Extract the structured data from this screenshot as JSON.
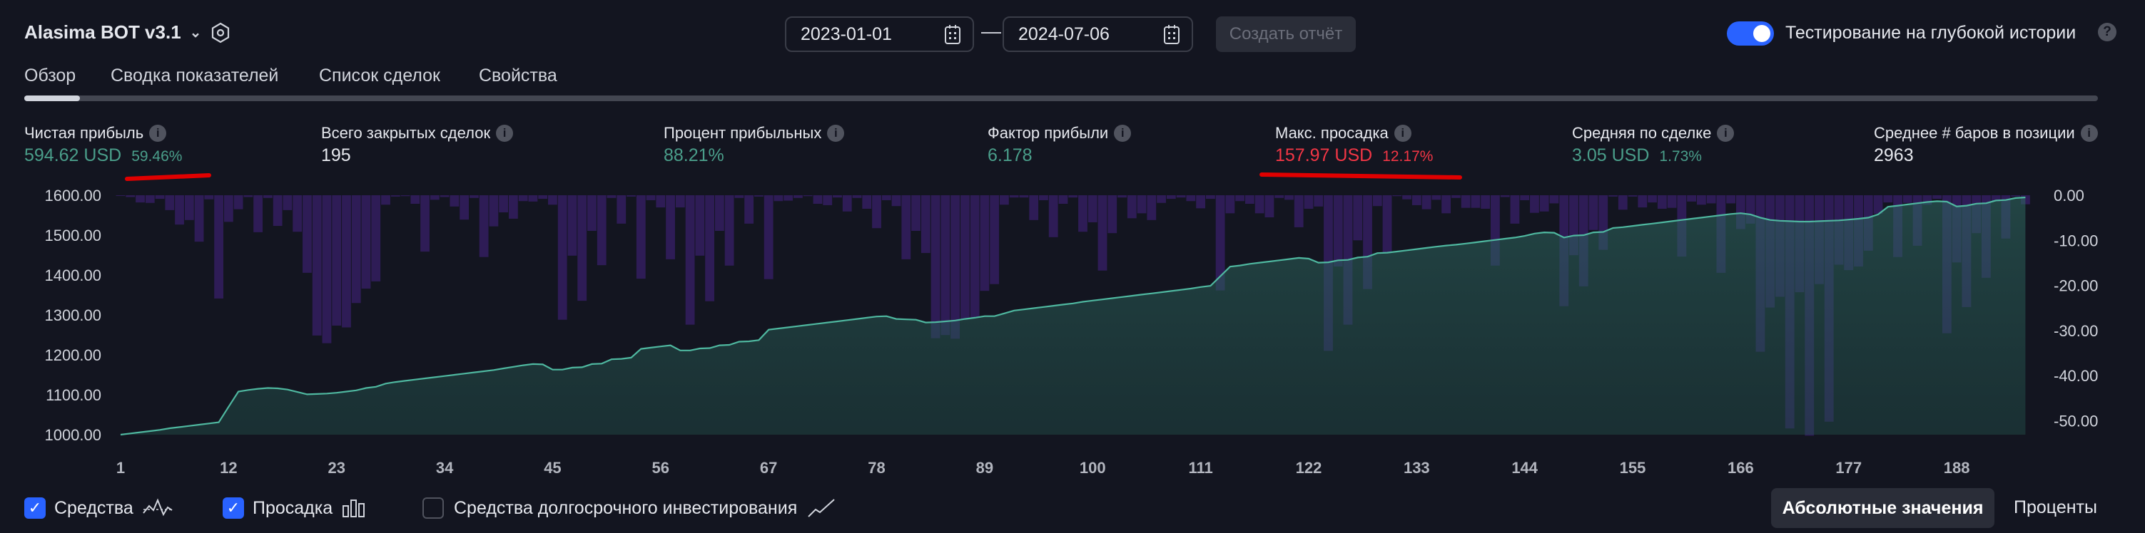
{
  "header": {
    "strategy_name": "Alasima BOT v3.1",
    "date_from": "2023-01-01",
    "date_to": "2024-07-06",
    "date_separator": "—",
    "create_report_label": "Создать отчёт",
    "deep_history_label": "Тестирование на глубокой истории",
    "deep_history_enabled": true,
    "help_icon": "?"
  },
  "tabs": [
    {
      "label": "Обзор",
      "active": true
    },
    {
      "label": "Сводка показателей"
    },
    {
      "label": "Список сделок"
    },
    {
      "label": "Свойства"
    }
  ],
  "stats": [
    {
      "label": "Чистая прибыль",
      "value": "594.62 USD",
      "sub": "59.46%",
      "color": "green"
    },
    {
      "label": "Всего закрытых сделок",
      "value": "195",
      "sub": "",
      "color": "white"
    },
    {
      "label": "Процент прибыльных",
      "value": "88.21%",
      "sub": "",
      "color": "green"
    },
    {
      "label": "Фактор прибыли",
      "value": "6.178",
      "sub": "",
      "color": "green"
    },
    {
      "label": "Макс. просадка",
      "value": "157.97 USD",
      "sub": "12.17%",
      "color": "red"
    },
    {
      "label": "Средняя по сделке",
      "value": "3.05 USD",
      "sub": "1.73%",
      "color": "green"
    },
    {
      "label": "Среднее # баров в позиции",
      "value": "2963",
      "sub": "",
      "color": "white"
    }
  ],
  "colors": {
    "accent": "#2962ff",
    "profit": "#4a9e8a",
    "loss": "#f23645",
    "equity_line": "#4fb8a0",
    "drawdown_bar": "#2e1c56",
    "annotation": "#e00000"
  },
  "chart_data": {
    "type": "bar+area",
    "left_axis": {
      "ylim": [
        1000,
        1600
      ],
      "ticks": [
        "1600.00",
        "1500.00",
        "1400.00",
        "1300.00",
        "1200.00",
        "1100.00",
        "1000.00"
      ]
    },
    "right_axis": {
      "ylim": [
        -55,
        0
      ],
      "ticks": [
        "0.00",
        "-10.00",
        "-20.00",
        "-30.00",
        "-40.00",
        "-50.00"
      ]
    },
    "x_ticks": [
      "1",
      "12",
      "23",
      "34",
      "45",
      "56",
      "67",
      "78",
      "89",
      "100",
      "111",
      "122",
      "133",
      "144",
      "155",
      "166",
      "177",
      "188"
    ],
    "trade_count": 195,
    "equity": [
      1000,
      1003,
      1006,
      1009,
      1012,
      1016,
      1019,
      1022,
      1025,
      1028,
      1031,
      1070,
      1108,
      1112,
      1115,
      1117,
      1116,
      1113,
      1107,
      1101,
      1102,
      1103,
      1105,
      1108,
      1111,
      1117,
      1120,
      1128,
      1132,
      1135,
      1138,
      1141,
      1144,
      1147,
      1150,
      1153,
      1156,
      1159,
      1162,
      1166,
      1170,
      1174,
      1177,
      1176,
      1163,
      1163,
      1168,
      1169,
      1177,
      1178,
      1189,
      1190,
      1193,
      1215,
      1218,
      1221,
      1224,
      1211,
      1211,
      1216,
      1217,
      1224,
      1225,
      1233,
      1234,
      1237,
      1263,
      1266,
      1269,
      1272,
      1275,
      1278,
      1281,
      1284,
      1287,
      1290,
      1293,
      1296,
      1297,
      1290,
      1289,
      1288,
      1281,
      1282,
      1284,
      1286,
      1290,
      1293,
      1297,
      1297,
      1304,
      1311,
      1314,
      1317,
      1320,
      1323,
      1326,
      1329,
      1333,
      1336,
      1339,
      1342,
      1345,
      1348,
      1351,
      1354,
      1357,
      1360,
      1363,
      1366,
      1370,
      1373,
      1397,
      1421,
      1424,
      1428,
      1431,
      1434,
      1437,
      1440,
      1443,
      1441,
      1431,
      1432,
      1437,
      1438,
      1444,
      1446,
      1455,
      1456,
      1459,
      1462,
      1465,
      1468,
      1471,
      1474,
      1476,
      1479,
      1482,
      1485,
      1488,
      1491,
      1494,
      1498,
      1504,
      1507,
      1506,
      1494,
      1499,
      1500,
      1507,
      1508,
      1518,
      1520,
      1523,
      1526,
      1529,
      1532,
      1535,
      1538,
      1541,
      1544,
      1547,
      1550,
      1553,
      1555,
      1552,
      1544,
      1538,
      1536,
      1535,
      1534,
      1534,
      1535,
      1536,
      1537,
      1539,
      1541,
      1544,
      1552,
      1571,
      1574,
      1577,
      1580,
      1583,
      1585,
      1584,
      1572,
      1574,
      1579,
      1580,
      1587,
      1588,
      1593,
      1594.62
    ],
    "drawdown": [
      -0.1,
      -0.4,
      -1.6,
      -1.7,
      -0.8,
      -3.3,
      -6.5,
      -5.5,
      -10.3,
      -0.9,
      -22.9,
      -5.9,
      -3.1,
      -0.4,
      -8.2,
      -0.6,
      -6.8,
      -3.3,
      -8.1,
      -17.2,
      -31.1,
      -32.8,
      -28.9,
      -29.3,
      -23.9,
      -20.7,
      -19.1,
      -2.1,
      -0.3,
      -0.2,
      -1.9,
      -12.5,
      -1.0,
      -0.4,
      -2.5,
      -5.4,
      -0.6,
      -13.7,
      -6.9,
      -3.8,
      -5.2,
      -1.3,
      -1.4,
      -0.8,
      -2.1,
      -27.6,
      -13.4,
      -23.4,
      -7.9,
      -15.5,
      -0.6,
      -6.3,
      -0.3,
      -18.5,
      -1.1,
      -2.7,
      -14.2,
      -2.7,
      -28.7,
      -13.4,
      -23.5,
      -7.9,
      -15.6,
      -0.6,
      -6.3,
      -0.3,
      -18.6,
      -1.3,
      -1.2,
      -0.6,
      -0.2,
      -1.9,
      -2.2,
      -0.5,
      -3.6,
      -0.6,
      -3.0,
      -7.3,
      -1.1,
      -2.4,
      -14.2,
      -7.9,
      -12.8,
      -31.7,
      -31.0,
      -31.8,
      -27.5,
      -27.2,
      -21.2,
      -19.7,
      -2.1,
      -0.5,
      -0.5,
      -5.5,
      -1.1,
      -9.3,
      -1.9,
      -0.5,
      -8.1,
      -6.0,
      -16.7,
      -8.4,
      -0.5,
      -5.1,
      -4.0,
      -5.5,
      -1.7,
      -0.8,
      -0.5,
      -1.3,
      -2.9,
      -0.8,
      -21.1,
      -4.0,
      -1.3,
      -1.9,
      -4.0,
      -4.9,
      -0.6,
      -1.0,
      -7.1,
      -3.0,
      -2.5,
      -34.5,
      -15.8,
      -28.7,
      -10.0,
      -20.8,
      -2.4,
      -12.8,
      -0.2,
      -0.9,
      -2.2,
      -3.1,
      -1.0,
      -4.0,
      -0.6,
      -2.8,
      -2.8,
      -3.0,
      -15.6,
      -0.4,
      -6.3,
      -1.1,
      -3.9,
      -3.6,
      -1.8,
      -24.6,
      -13.3,
      -20.2,
      -7.7,
      -12.1,
      -0.3,
      -3.2,
      -0.3,
      -2.7,
      -1.6,
      -3.0,
      -2.8,
      -13.6,
      -1.4,
      -2.1,
      -1.8,
      -17.2,
      -1.8,
      -7.5,
      -6.3,
      -34.7,
      -24.9,
      -22.5,
      -51.7,
      -21.5,
      -53.3,
      -19.7,
      -50.2,
      -15.4,
      -16.6,
      -15.8,
      -12.3,
      -4.1,
      -1.6,
      -13.7,
      -1.7,
      -11.2,
      -2.1,
      -0.8,
      -30.6,
      -14.9,
      -24.8,
      -8.4,
      -18.3,
      -1.4,
      -9.6,
      -0.3,
      -2.0
    ],
    "grid": false
  },
  "legend": {
    "equity_label": "Средства",
    "equity_checked": true,
    "drawdown_label": "Просадка",
    "drawdown_checked": true,
    "buyhold_label": "Средства долгосрочного инвестирования",
    "buyhold_checked": false,
    "check_mark": "✓"
  },
  "view_toggle": {
    "absolute_label": "Абсолютные значения",
    "percent_label": "Проценты",
    "selected": "absolute"
  }
}
